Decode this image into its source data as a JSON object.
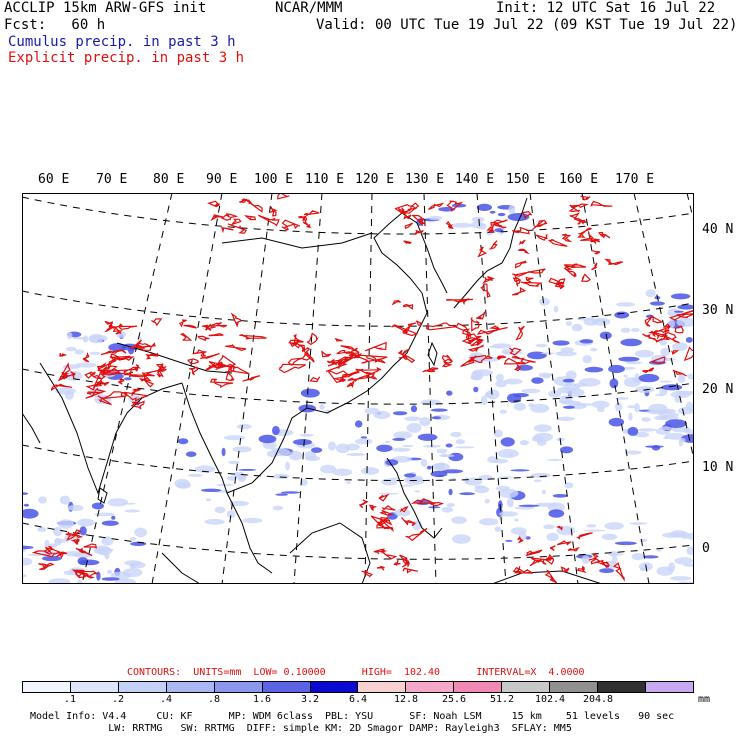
{
  "header": {
    "line1_left": "ACCLIP 15km ARW-GFS init",
    "line1_mid": "NCAR/MMM",
    "line1_right": "Init: 12 UTC Sat 16 Jul 22",
    "line2_left": "Fcst:   60 h",
    "line2_right": "Valid: 00 UTC Tue 19 Jul 22 (09 KST Tue 19 Jul 22)",
    "line3": "Cumulus precip. in past 3 h",
    "line4": "Explicit precip. in past 3 h"
  },
  "map": {
    "lon_labels": [
      "60 E",
      "70 E",
      "80 E",
      "90 E",
      "100 E",
      "110 E",
      "120 E",
      "130 E",
      "140 E",
      "150 E",
      "160 E",
      "170 E"
    ],
    "lat_labels": [
      "40 N",
      "30 N",
      "20 N",
      "10 N",
      "0"
    ],
    "colors": {
      "coast": "#000000",
      "grid": "#000000",
      "explicit": "#e01010",
      "cumulus": "#2030e0"
    }
  },
  "contours": {
    "label": "CONTOURS:  UNITS=mm  LOW= 0.10000      HIGH=  102.40      INTERVAL=X  4.0000"
  },
  "legend": {
    "colors": [
      "#ffffff",
      "#f2f6fe",
      "#dde6fb",
      "#c3d1f6",
      "#a9b8f2",
      "#8c98ed",
      "#5c63e5",
      "#0a0ad0",
      "#f7d0d0",
      "#f5a8c8",
      "#f08ab5",
      "#c8c8c8",
      "#909090",
      "#303030",
      "#c8a8f0"
    ],
    "ticks": [
      ".1",
      ".2",
      ".4",
      ".8",
      "1.6",
      "3.2",
      "6.4",
      "12.8",
      "25.6",
      "51.2",
      "102.4",
      "204.8"
    ],
    "units": "mm"
  },
  "footer": {
    "line1": "Model Info: V4.4     CU: KF      MP: WDM 6class  PBL: YSU      SF: Noah LSM     15 km    51 levels   90 sec",
    "line2": "             LW: RRTMG   SW: RRTMG  DIFF: simple KM: 2D Smagor DAMP: Rayleigh3  SFLAY: MM5"
  }
}
